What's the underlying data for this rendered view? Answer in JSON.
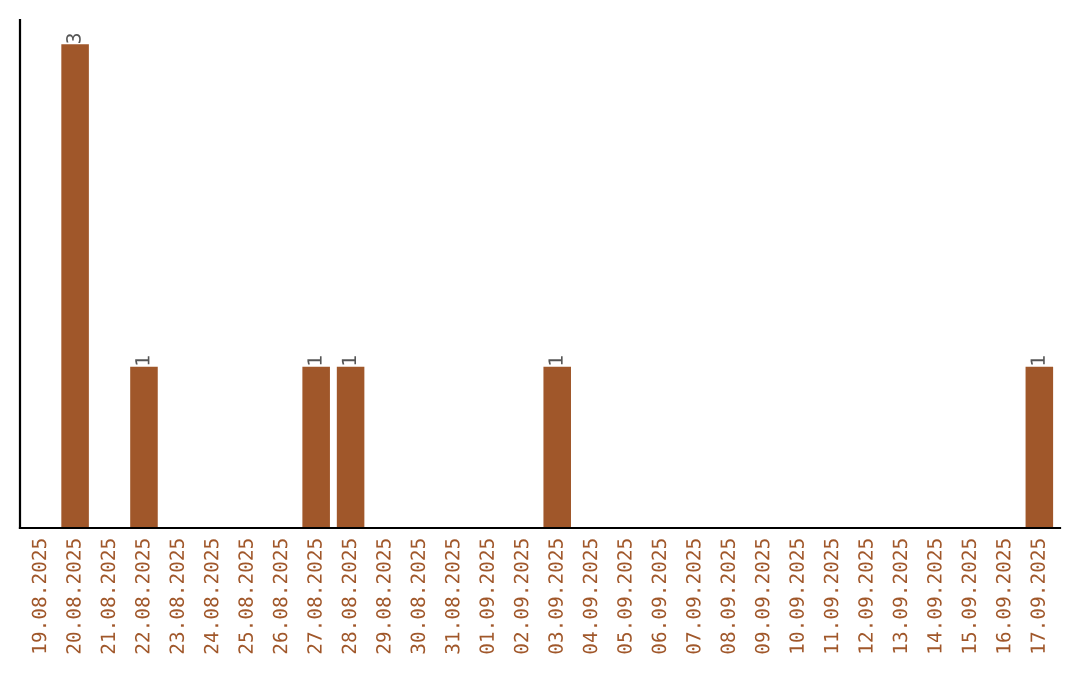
{
  "chart_data": {
    "type": "bar",
    "categories": [
      "19.08.2025",
      "20.08.2025",
      "21.08.2025",
      "22.08.2025",
      "23.08.2025",
      "24.08.2025",
      "25.08.2025",
      "26.08.2025",
      "27.08.2025",
      "28.08.2025",
      "29.08.2025",
      "30.08.2025",
      "31.08.2025",
      "01.09.2025",
      "02.09.2025",
      "03.09.2025",
      "04.09.2025",
      "05.09.2025",
      "06.09.2025",
      "07.09.2025",
      "08.09.2025",
      "09.09.2025",
      "10.09.2025",
      "11.09.2025",
      "12.09.2025",
      "13.09.2025",
      "14.09.2025",
      "15.09.2025",
      "16.09.2025",
      "17.09.2025"
    ],
    "values": [
      0,
      3,
      0,
      1,
      0,
      0,
      0,
      0,
      1,
      1,
      0,
      0,
      0,
      0,
      0,
      1,
      0,
      0,
      0,
      0,
      0,
      0,
      0,
      0,
      0,
      0,
      0,
      0,
      0,
      1
    ],
    "value_labels": [
      null,
      "3",
      null,
      "1",
      null,
      null,
      null,
      null,
      "1",
      "1",
      null,
      null,
      null,
      null,
      null,
      "1",
      null,
      null,
      null,
      null,
      null,
      null,
      null,
      null,
      null,
      null,
      null,
      null,
      null,
      "1"
    ],
    "color": "#a0572a",
    "tick_labels": "x",
    "grid": false,
    "legend": false
  }
}
